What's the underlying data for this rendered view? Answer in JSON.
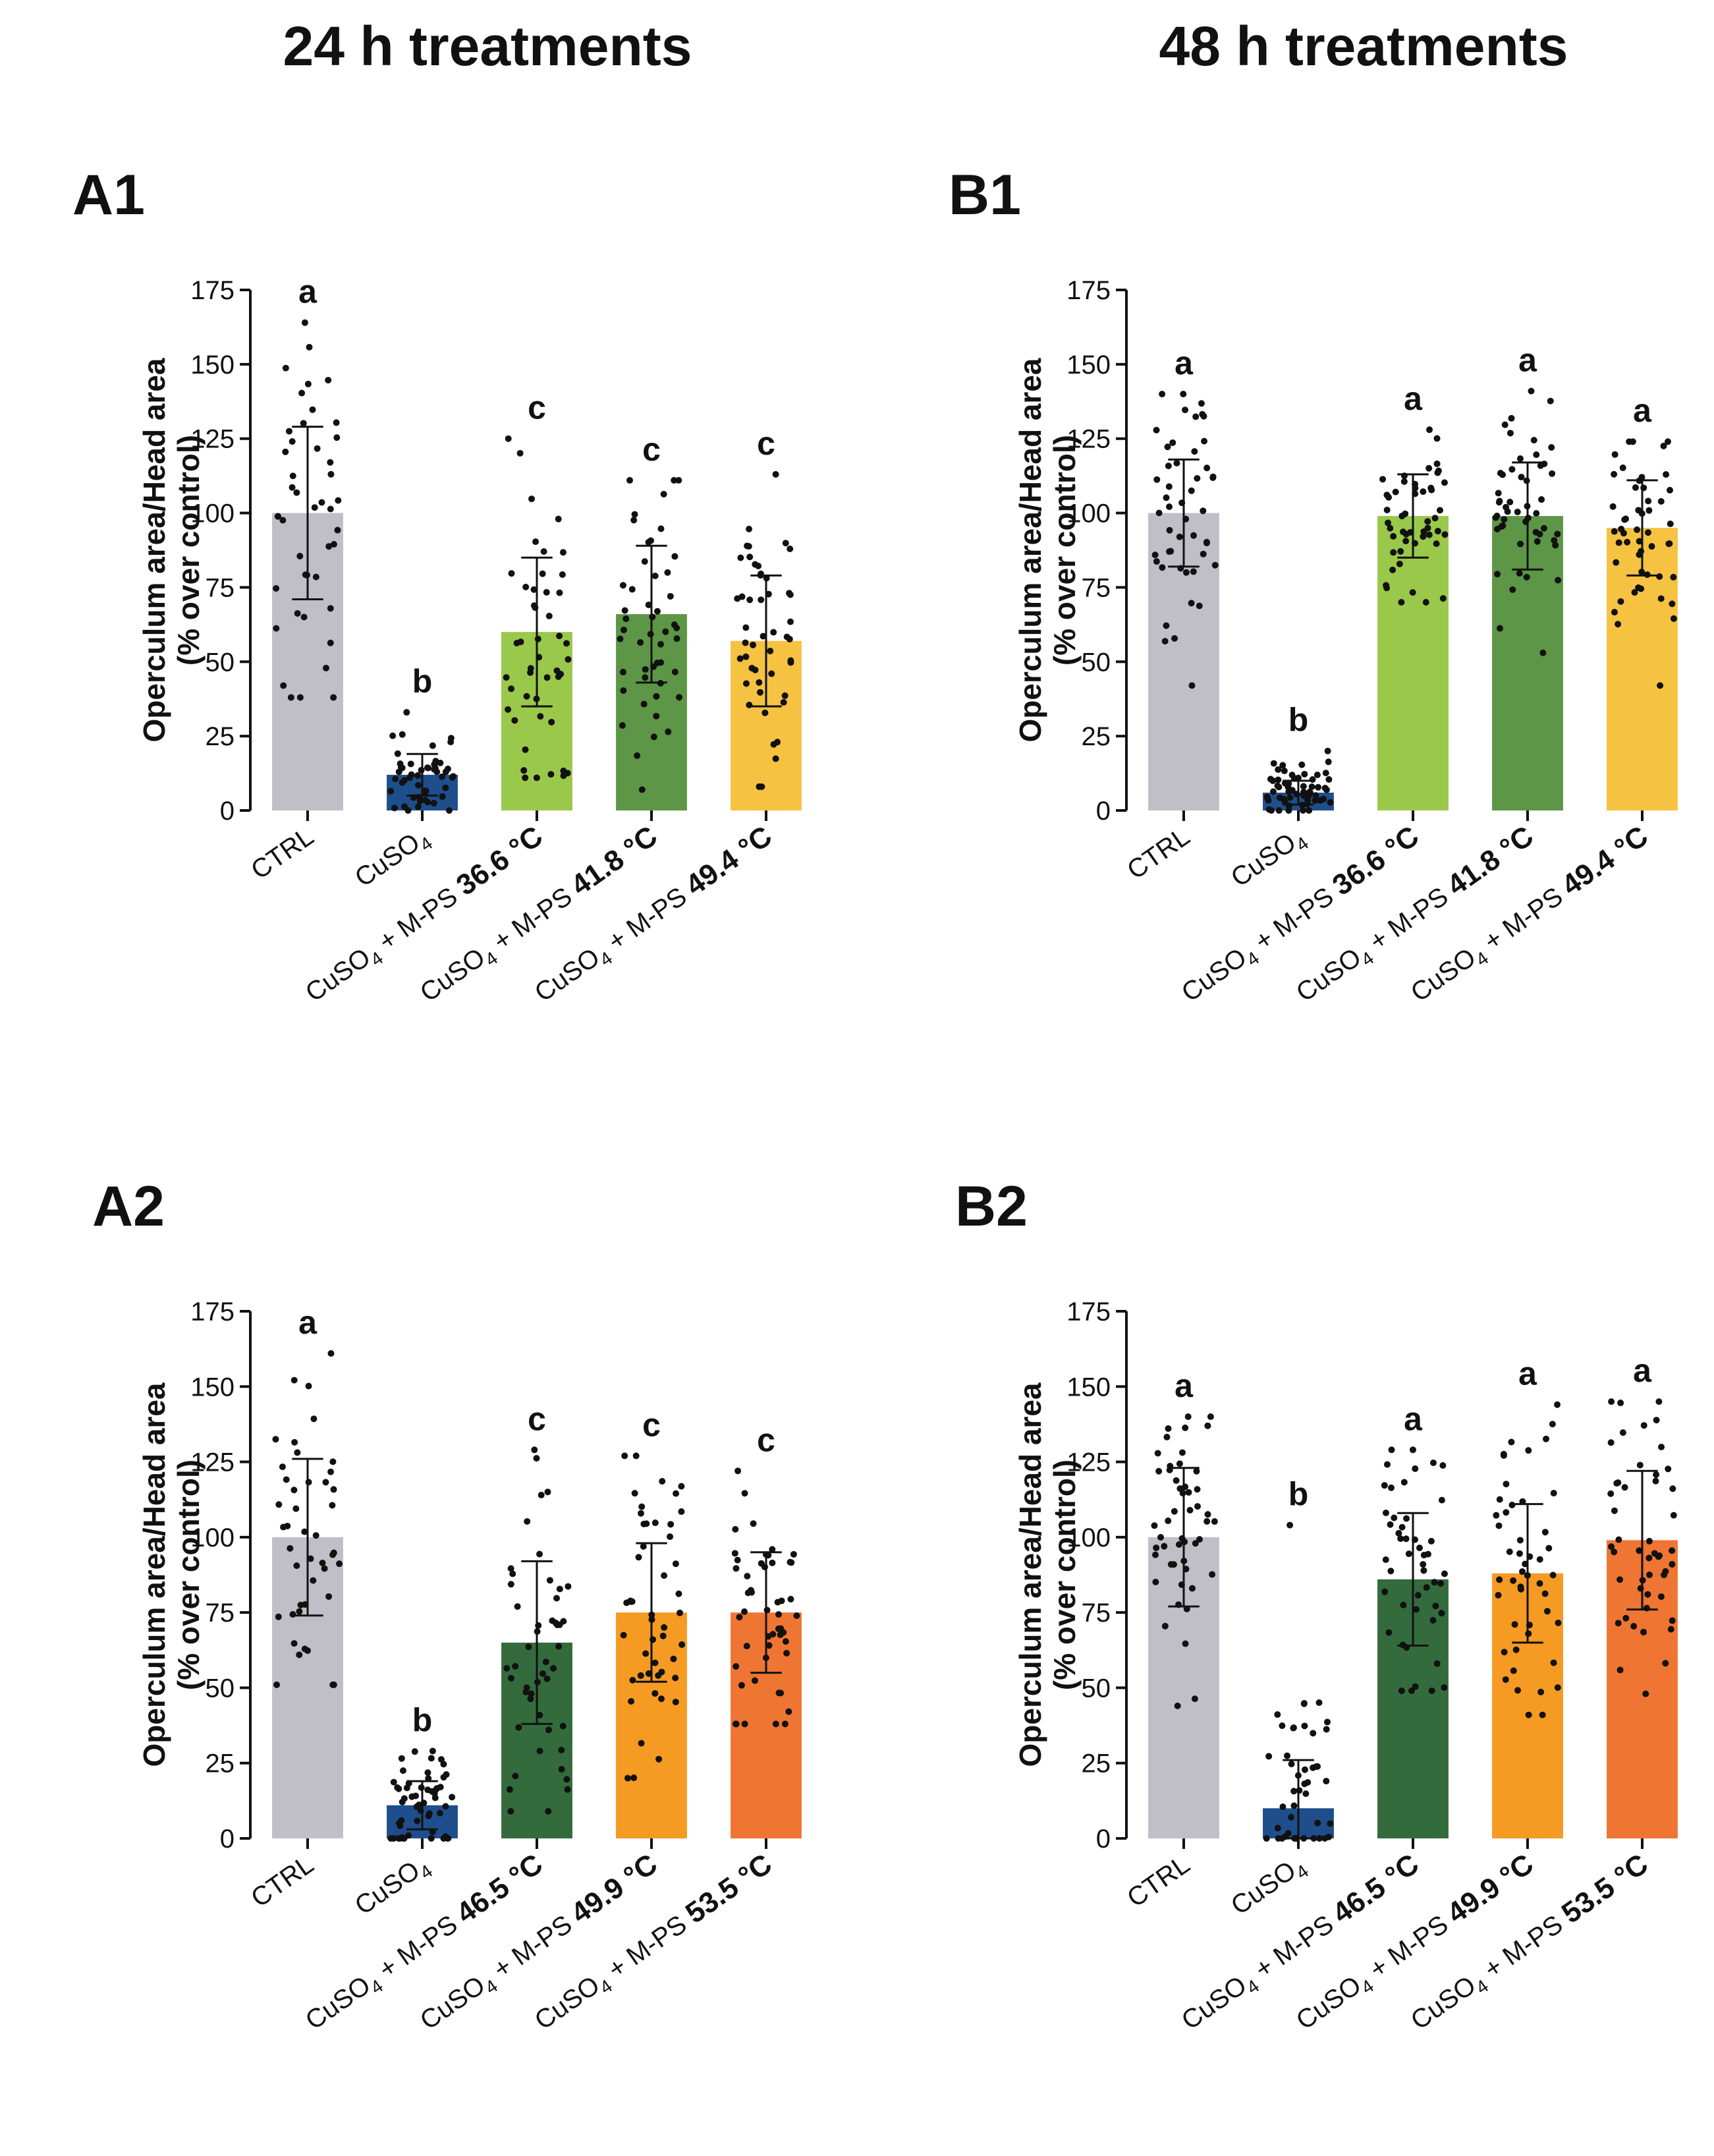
{
  "headers": {
    "left": "24 h treatments",
    "right": "48 h treatments"
  },
  "chart_data": [
    {
      "type": "bar",
      "panel": "A1",
      "column": "24 h treatments",
      "ylabel_line1": "Operculum area/Head area",
      "ylabel_line2": "(% over control)",
      "ylim": [
        0,
        175
      ],
      "yticks": [
        0,
        25,
        50,
        75,
        100,
        125,
        150,
        175
      ],
      "categories": [
        {
          "prefix": "CTRL",
          "sub": "",
          "middle": "",
          "temp": ""
        },
        {
          "prefix": "CuSO",
          "sub": "4",
          "middle": "",
          "temp": ""
        },
        {
          "prefix": "CuSO",
          "sub": "4",
          "middle": " + M-PS ",
          "temp": "36.6 °C"
        },
        {
          "prefix": "CuSO",
          "sub": "4",
          "middle": " + M-PS ",
          "temp": "41.8 °C"
        },
        {
          "prefix": "CuSO",
          "sub": "4",
          "middle": " + M-PS ",
          "temp": "49.4 °C"
        }
      ],
      "values": [
        100,
        12,
        60,
        66,
        57
      ],
      "errors": [
        29,
        7,
        25,
        23,
        22
      ],
      "colors": [
        "#c0bec6",
        "#1f4e8c",
        "#9ac84a",
        "#5d9646",
        "#f5c242"
      ],
      "letters": [
        "a",
        "b",
        "c",
        "c",
        "c"
      ],
      "dot_range": [
        [
          38,
          164
        ],
        [
          0,
          33
        ],
        [
          11,
          125
        ],
        [
          7,
          111
        ],
        [
          8,
          113
        ]
      ],
      "dot_count": [
        44,
        50,
        46,
        48,
        48
      ]
    },
    {
      "type": "bar",
      "panel": "B1",
      "column": "48 h treatments",
      "ylabel_line1": "Operculum area/Head area",
      "ylabel_line2": "(% over control)",
      "ylim": [
        0,
        175
      ],
      "yticks": [
        0,
        25,
        50,
        75,
        100,
        125,
        150,
        175
      ],
      "categories": [
        {
          "prefix": "CTRL",
          "sub": "",
          "middle": "",
          "temp": ""
        },
        {
          "prefix": "CuSO",
          "sub": "4",
          "middle": "",
          "temp": ""
        },
        {
          "prefix": "CuSO",
          "sub": "4",
          "middle": " + M-PS ",
          "temp": "36.6 °C"
        },
        {
          "prefix": "CuSO",
          "sub": "4",
          "middle": " + M-PS ",
          "temp": "41.8 °C"
        },
        {
          "prefix": "CuSO",
          "sub": "4",
          "middle": " + M-PS ",
          "temp": "49.4 °C"
        }
      ],
      "values": [
        100,
        6,
        99,
        99,
        95
      ],
      "errors": [
        18,
        4,
        14,
        18,
        16
      ],
      "colors": [
        "#c0bec6",
        "#1f4e8c",
        "#9ac84a",
        "#5d9646",
        "#f5c242"
      ],
      "letters": [
        "a",
        "b",
        "a",
        "a",
        "a"
      ],
      "dot_range": [
        [
          42,
          140
        ],
        [
          0,
          20
        ],
        [
          70,
          128
        ],
        [
          53,
          141
        ],
        [
          42,
          124
        ]
      ],
      "dot_count": [
        48,
        60,
        50,
        50,
        50
      ]
    },
    {
      "type": "bar",
      "panel": "A2",
      "column": "24 h treatments",
      "ylabel_line1": "Operculum area/Head area",
      "ylabel_line2": "(% over control)",
      "ylim": [
        0,
        175
      ],
      "yticks": [
        0,
        25,
        50,
        75,
        100,
        125,
        150,
        175
      ],
      "categories": [
        {
          "prefix": "CTRL",
          "sub": "",
          "middle": "",
          "temp": ""
        },
        {
          "prefix": "CuSO",
          "sub": "4",
          "middle": "",
          "temp": ""
        },
        {
          "prefix": "CuSO",
          "sub": "4",
          "middle": " + M-PS ",
          "temp": "46.5 °C"
        },
        {
          "prefix": "CuSO",
          "sub": "4",
          "middle": " + M-PS ",
          "temp": "49.9 °C"
        },
        {
          "prefix": "CuSO",
          "sub": "4",
          "middle": " + M-PS ",
          "temp": "53.5 °C"
        }
      ],
      "values": [
        100,
        11,
        65,
        75,
        75
      ],
      "errors": [
        26,
        8,
        27,
        23,
        20
      ],
      "colors": [
        "#c0bec6",
        "#1f4e8c",
        "#336b3d",
        "#f59a23",
        "#ef7533"
      ],
      "letters": [
        "a",
        "b",
        "c",
        "c",
        "c"
      ],
      "dot_range": [
        [
          51,
          161
        ],
        [
          0,
          29
        ],
        [
          9,
          129
        ],
        [
          20,
          127
        ],
        [
          38,
          122
        ]
      ],
      "dot_count": [
        44,
        55,
        48,
        48,
        50
      ]
    },
    {
      "type": "bar",
      "panel": "B2",
      "column": "48 h treatments",
      "ylabel_line1": "Operculum area/Head area",
      "ylabel_line2": "(% over control)",
      "ylim": [
        0,
        175
      ],
      "yticks": [
        0,
        25,
        50,
        75,
        100,
        125,
        150,
        175
      ],
      "categories": [
        {
          "prefix": "CTRL",
          "sub": "",
          "middle": "",
          "temp": ""
        },
        {
          "prefix": "CuSO",
          "sub": "4",
          "middle": "",
          "temp": ""
        },
        {
          "prefix": "CuSO",
          "sub": "4",
          "middle": " + M-PS ",
          "temp": "46.5 °C"
        },
        {
          "prefix": "CuSO",
          "sub": "4",
          "middle": " + M-PS ",
          "temp": "49.9 °C"
        },
        {
          "prefix": "CuSO",
          "sub": "4",
          "middle": " + M-PS ",
          "temp": "53.5 °C"
        }
      ],
      "values": [
        100,
        10,
        86,
        88,
        99
      ],
      "errors": [
        23,
        16,
        22,
        23,
        23
      ],
      "colors": [
        "#c0bec6",
        "#1f4e8c",
        "#336b3d",
        "#f59a23",
        "#ef7533"
      ],
      "letters": [
        "a",
        "b",
        "a",
        "a",
        "a"
      ],
      "dot_range": [
        [
          44,
          140
        ],
        [
          0,
          104
        ],
        [
          49,
          129
        ],
        [
          41,
          144
        ],
        [
          48,
          145
        ]
      ],
      "dot_count": [
        50,
        45,
        48,
        48,
        48
      ]
    }
  ]
}
